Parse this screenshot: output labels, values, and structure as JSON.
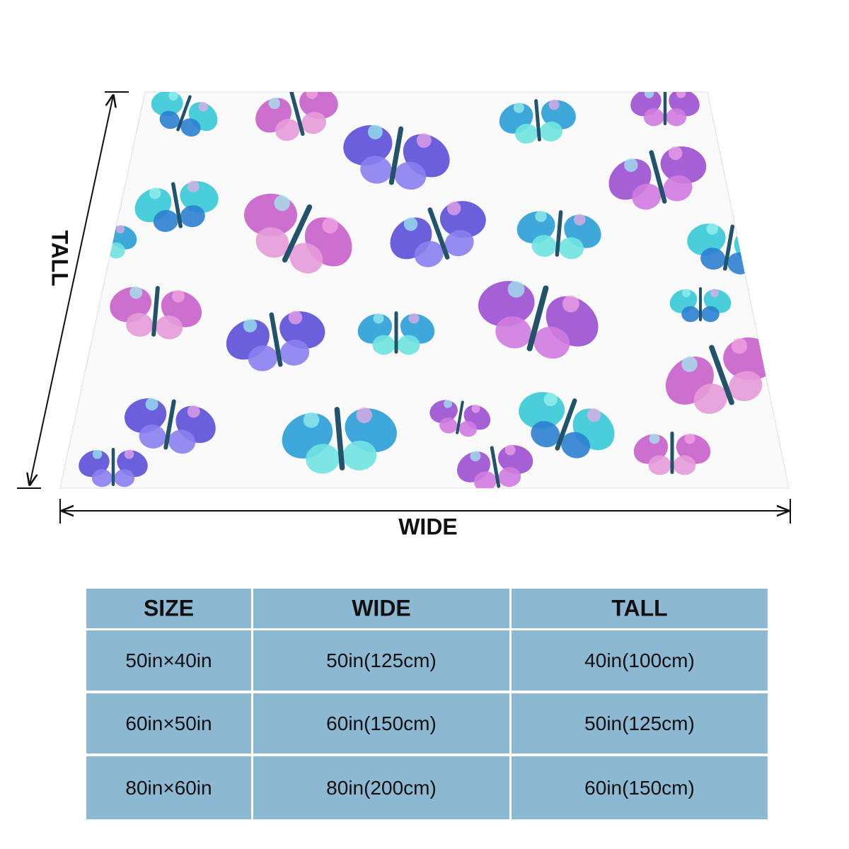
{
  "dimension_labels": {
    "tall": "TALL",
    "wide": "WIDE"
  },
  "table": {
    "header": [
      "SIZE",
      "WIDE",
      "TALL"
    ],
    "rows": [
      [
        "50in×40in",
        "50in(125cm)",
        "40in(100cm)"
      ],
      [
        "60in×50in",
        "60in(150cm)",
        "50in(125cm)"
      ],
      [
        "80in×60in",
        "80in(200cm)",
        "60in(150cm)"
      ]
    ]
  }
}
